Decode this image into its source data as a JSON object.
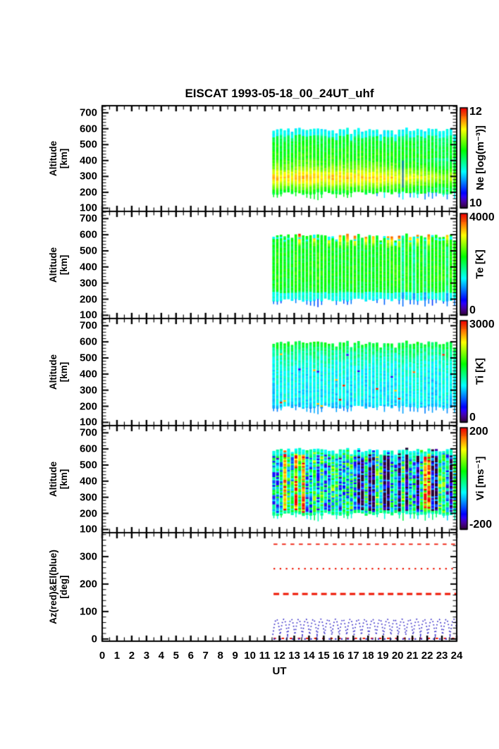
{
  "title": "EISCAT 1993-05-18_00_24UT_uhf",
  "xaxis": {
    "label": "UT",
    "tick_labels": [
      0,
      1,
      2,
      3,
      4,
      5,
      6,
      7,
      8,
      9,
      10,
      11,
      12,
      13,
      14,
      15,
      16,
      17,
      18,
      19,
      20,
      21,
      22,
      23,
      24
    ]
  },
  "colors": {
    "red": "#ee1400",
    "blue": "#3a30c8",
    "axis": "#000000",
    "background": "#ffffff"
  },
  "chart_data": [
    {
      "id": "ne",
      "type": "heatmap",
      "quantity": "Electron density",
      "ylabel_lines": [
        "Altitude",
        "[km]"
      ],
      "y_ticks": [
        100,
        200,
        300,
        400,
        500,
        600,
        700
      ],
      "y_range_km": [
        100,
        700
      ],
      "data_time_range_ut": [
        11.5,
        24
      ],
      "data_altitude_range_km": [
        150,
        605
      ],
      "colorbar": {
        "title": "Ne [log(m⁻³)]",
        "min": 10,
        "max": 12,
        "max_label": "12",
        "min_label": "10"
      },
      "altitude_profile": [
        [
          150,
          10.9
        ],
        [
          200,
          11.12
        ],
        [
          230,
          11.32
        ],
        [
          260,
          11.52
        ],
        [
          290,
          11.66
        ],
        [
          320,
          11.52
        ],
        [
          350,
          11.36
        ],
        [
          400,
          11.2
        ],
        [
          460,
          11.14
        ],
        [
          520,
          11.08
        ],
        [
          560,
          11.0
        ],
        [
          605,
          10.88
        ]
      ],
      "features": "repeating elevation-scan stripes; yellow-orange F-region maximum near 250-330 km until ~19 UT, weakening later; cyan stripe tops; blue low-altitude spikes after ~17 UT"
    },
    {
      "id": "te",
      "type": "heatmap",
      "quantity": "Electron temperature",
      "ylabel_lines": [
        "Altitude",
        "[km]"
      ],
      "y_ticks": [
        100,
        200,
        300,
        400,
        500,
        600,
        700
      ],
      "y_range_km": [
        100,
        700
      ],
      "data_time_range_ut": [
        11.5,
        24
      ],
      "data_altitude_range_km": [
        150,
        605
      ],
      "colorbar": {
        "title": "Te [K]",
        "min": 0,
        "max": 4000,
        "max_label": "4000",
        "min_label": "0"
      },
      "altitude_profile": [
        [
          150,
          1200
        ],
        [
          195,
          1600
        ],
        [
          220,
          1840
        ],
        [
          245,
          2160
        ],
        [
          280,
          2280
        ],
        [
          350,
          2320
        ],
        [
          450,
          2280
        ],
        [
          550,
          2240
        ],
        [
          605,
          2200
        ]
      ],
      "features": "mostly green ~2200 K; cyan band below ~235 km; dark-blue spikes near 170 km; sporadic red-orange hot spots above ~520 km"
    },
    {
      "id": "ti",
      "type": "heatmap",
      "quantity": "Ion temperature",
      "ylabel_lines": [
        "Altitude",
        "[km]"
      ],
      "y_ticks": [
        100,
        200,
        300,
        400,
        500,
        600,
        700
      ],
      "y_range_km": [
        100,
        700
      ],
      "data_time_range_ut": [
        11.5,
        24
      ],
      "data_altitude_range_km": [
        150,
        605
      ],
      "colorbar": {
        "title": "Ti [K]",
        "min": 0,
        "max": 3000,
        "max_label": "3000",
        "min_label": "0"
      },
      "altitude_profile": [
        [
          150,
          780
        ],
        [
          190,
          930
        ],
        [
          220,
          1050
        ],
        [
          300,
          1080
        ],
        [
          400,
          1110
        ],
        [
          480,
          1230
        ],
        [
          540,
          1410
        ],
        [
          580,
          1560
        ],
        [
          605,
          1620
        ]
      ],
      "features": "mostly cyan-blue ~1000-1200 K with greener stripe tops; occasional colored specks"
    },
    {
      "id": "vi",
      "type": "heatmap",
      "quantity": "Ion velocity",
      "ylabel_lines": [
        "Altitude",
        "[km]"
      ],
      "y_ticks": [
        100,
        200,
        300,
        400,
        500,
        600,
        700
      ],
      "y_range_km": [
        100,
        700
      ],
      "data_time_range_ut": [
        11.5,
        24
      ],
      "data_altitude_range_km": [
        150,
        605
      ],
      "colorbar": {
        "title": "Vi [ms⁻¹]",
        "min": -200,
        "max": 200,
        "max_label": "200",
        "min_label": "-200"
      },
      "altitude_profile": [
        [
          150,
          -10
        ],
        [
          300,
          -25
        ],
        [
          605,
          -30
        ]
      ],
      "features": "very noisy mix of cyan/green (small velocities) with red (>+150 m/s) and near-black (<-180 m/s) columns; dark columns frequent after ~17 UT"
    },
    {
      "id": "azel",
      "type": "line",
      "quantity": "Antenna azimuth and elevation",
      "ylabel_lines": [
        "Az(red)&El(blue)",
        "[deg]"
      ],
      "y_ticks": [
        0,
        100,
        200,
        300
      ],
      "y_range_deg": [
        0,
        385
      ],
      "data_time_range_ut": [
        11.5,
        24
      ],
      "series": [
        {
          "name": "azimuth-upper",
          "color": "red",
          "style": "dashed",
          "value_deg": 345
        },
        {
          "name": "azimuth-middle",
          "color": "red",
          "style": "dotted",
          "value_deg": 256
        },
        {
          "name": "azimuth-lower",
          "color": "red",
          "style": "thick-dashed",
          "value_deg": 164
        },
        {
          "name": "azimuth-near-zero",
          "color": "red",
          "style": "sparse-dashed",
          "value_deg": 2
        },
        {
          "name": "elevation-scan",
          "color": "blue",
          "style": "dotted-wave",
          "min_deg": 15,
          "max_deg": 72,
          "period_hr": 0.5
        },
        {
          "name": "elevation-near-zero",
          "color": "blue",
          "style": "dotted",
          "value_deg": 0
        }
      ]
    }
  ]
}
